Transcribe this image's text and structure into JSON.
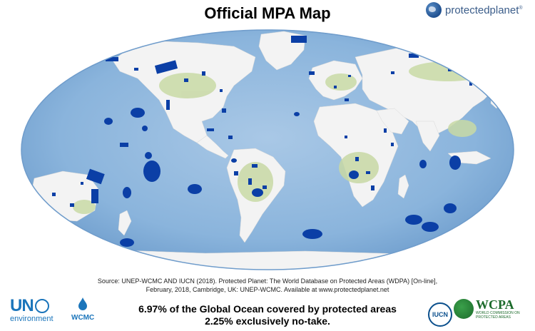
{
  "title": "Official MPA Map",
  "brand": {
    "name": "protectedplanet",
    "mark": "®"
  },
  "source": {
    "line1": "Source: UNEP-WCMC AND IUCN (2018). Protected Planet: The World Database on Protected Areas (WDPA) [On-line],",
    "line2": "February, 2018, Cambridge, UK: UNEP-WCMC. Available at www.protectedplanet.net"
  },
  "stats": {
    "covered": "6.97% of the Global Ocean covered by protected areas",
    "no_take": "2.25% exclusively no-take."
  },
  "logos": {
    "un_mark": "UN",
    "un_sub": "environment",
    "wcmc": "WCMC",
    "iucn": "IUCN",
    "wcpa": "WCPA",
    "wcpa_sub": "WORLD COMMISSION ON PROTECTED AREAS"
  },
  "colors": {
    "ocean_light": "#b9d3ea",
    "ocean_deep": "#6f9fcf",
    "land": "#f2f2f2",
    "vegetation": "#c9d9a8",
    "protected": "#0b3fa6",
    "title": "#000000"
  }
}
